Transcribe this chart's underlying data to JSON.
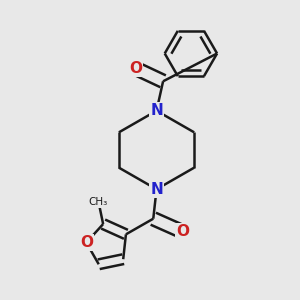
{
  "background_color": "#e8e8e8",
  "line_color": "#1a1a1a",
  "n_color": "#2222cc",
  "o_color": "#cc2222",
  "bond_width": 1.8,
  "figsize": [
    3.0,
    3.0
  ],
  "dpi": 100,
  "xlim": [
    0,
    1
  ],
  "ylim": [
    0,
    1
  ]
}
